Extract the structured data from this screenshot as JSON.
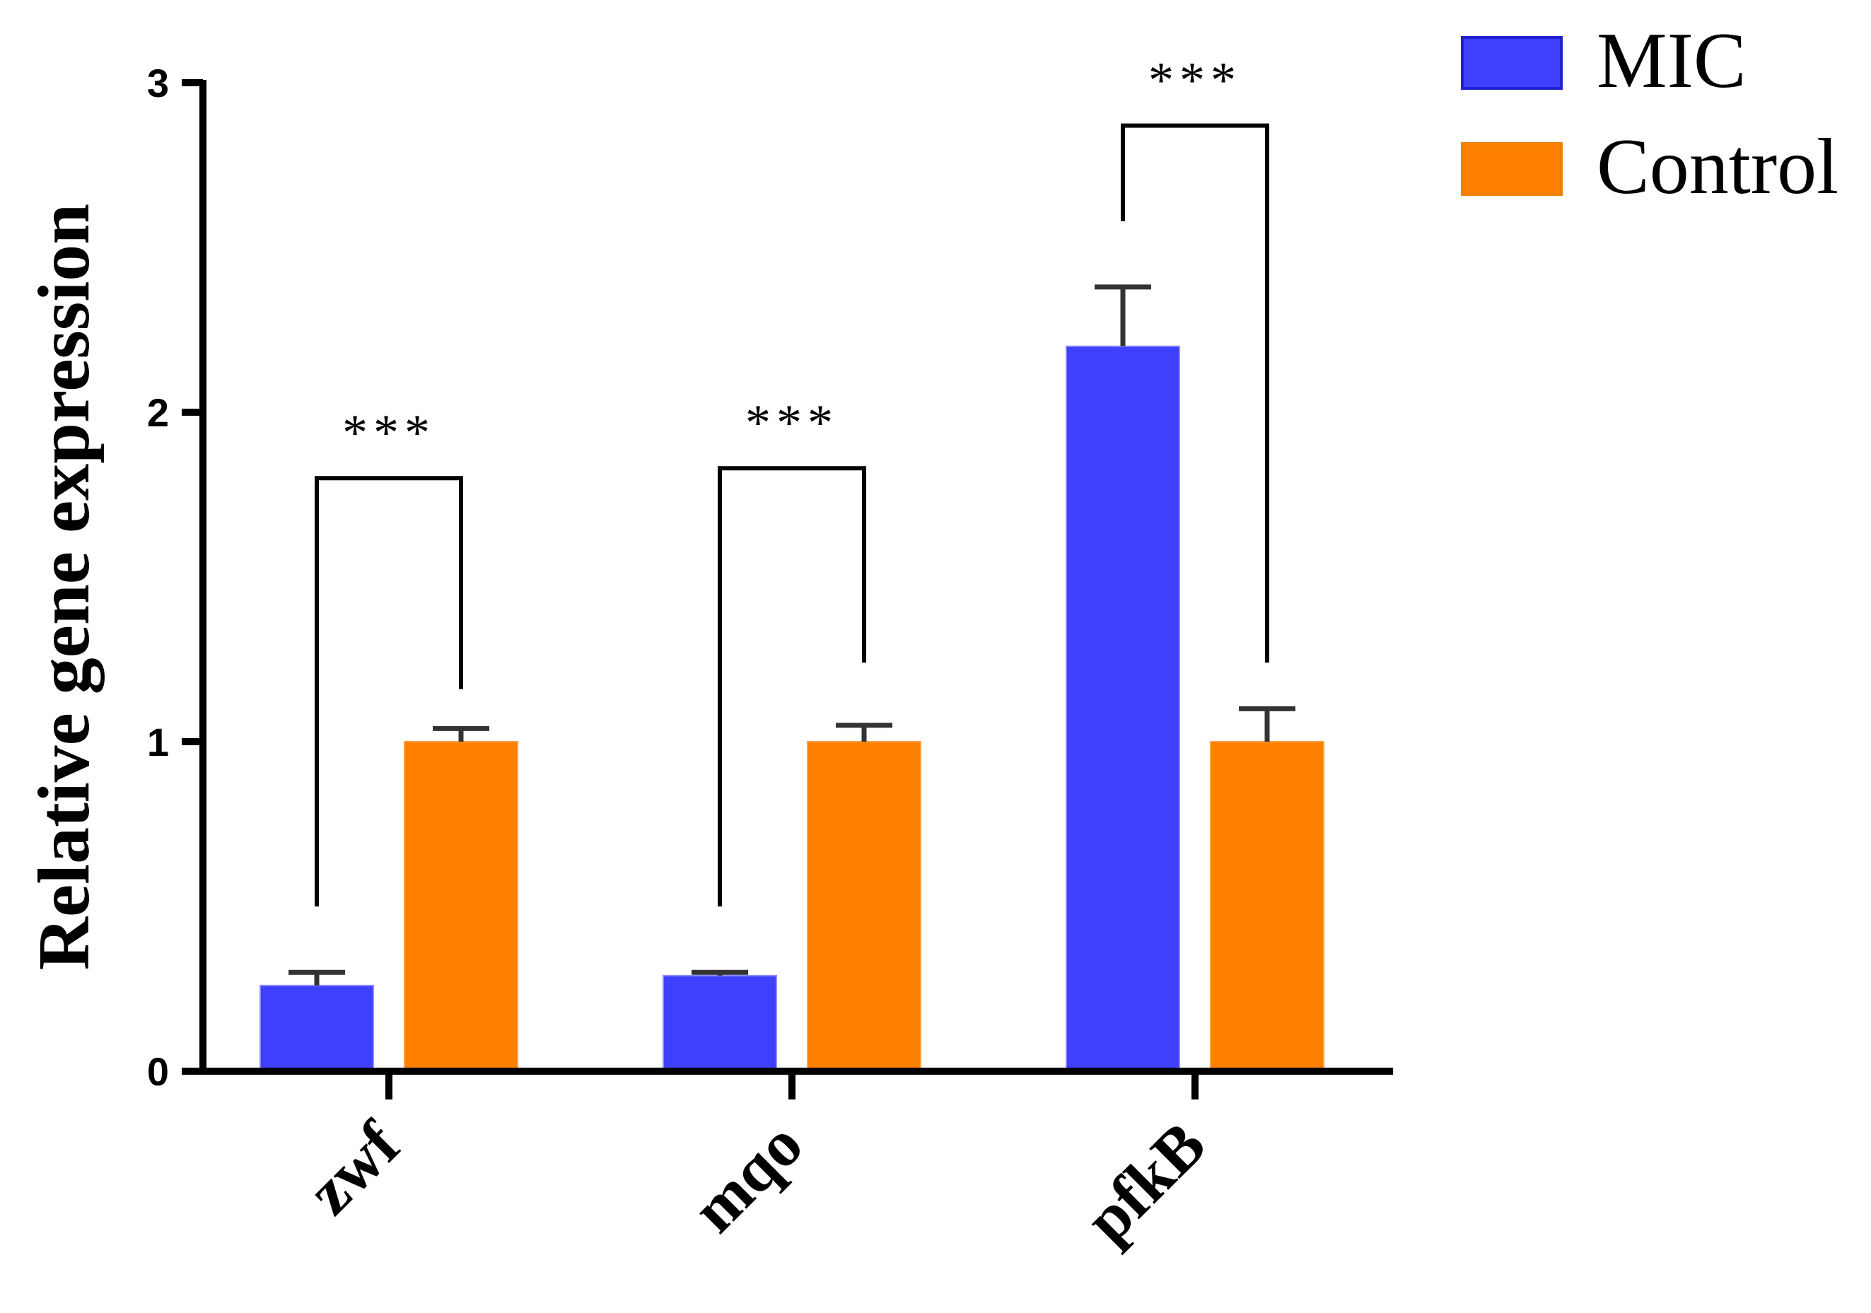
{
  "chart_data": {
    "type": "bar",
    "categories": [
      "zwf",
      "mqo",
      "pfkB"
    ],
    "series": [
      {
        "name": "MIC",
        "color": "#3f3ffe",
        "values": [
          0.26,
          0.29,
          2.2
        ],
        "errors": [
          0.04,
          0.01,
          0.18
        ]
      },
      {
        "name": "Control",
        "color": "#ff8000",
        "values": [
          1.0,
          1.0,
          1.0
        ],
        "errors": [
          0.04,
          0.05,
          0.1
        ]
      }
    ],
    "ylabel": "Relative gene expression",
    "xlabel": "",
    "ylim": [
      0,
      3
    ],
    "yticks": [
      0,
      1,
      2,
      3
    ],
    "grid": false,
    "legend": "top-right",
    "significance": [
      {
        "category": "zwf",
        "label": "***"
      },
      {
        "category": "mqo",
        "label": "***"
      },
      {
        "category": "pfkB",
        "label": "***"
      }
    ]
  }
}
